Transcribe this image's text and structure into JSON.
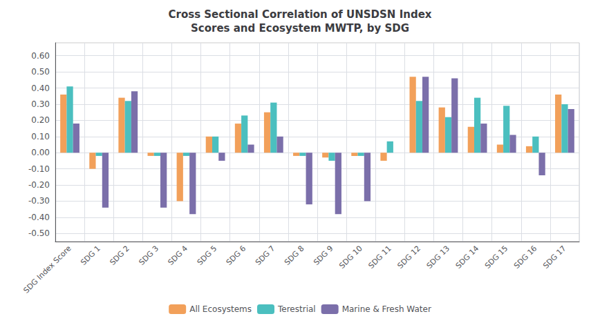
{
  "chart_data": {
    "type": "bar",
    "title": "Cross Sectional Correlation of UNSDSN Index\nScores and Ecosystem MWTP, by SDG",
    "categories": [
      "SDG Index Score",
      "SDG 1",
      "SDG 2",
      "SDG 3",
      "SDG 4",
      "SDG 5",
      "SDG 6",
      "SDG 7",
      "SDG 8",
      "SDG 9",
      "SDG 10",
      "SDG 11",
      "SDG 12",
      "SDG 13",
      "SDG 14",
      "SDG 15",
      "SDG 16",
      "SDG 17"
    ],
    "series": [
      {
        "name": "All Ecosystems",
        "color": "#F2A05A",
        "values": [
          0.36,
          -0.1,
          0.34,
          -0.02,
          -0.3,
          0.1,
          0.18,
          0.25,
          -0.02,
          -0.03,
          -0.02,
          -0.05,
          0.47,
          0.28,
          0.16,
          0.05,
          0.04,
          0.36
        ]
      },
      {
        "name": "Terestrial",
        "color": "#4BBFBF",
        "values": [
          0.41,
          -0.02,
          0.32,
          -0.02,
          -0.02,
          0.1,
          0.23,
          0.31,
          -0.02,
          -0.05,
          -0.02,
          0.07,
          0.32,
          0.22,
          0.34,
          0.29,
          0.1,
          0.3
        ]
      },
      {
        "name": "Marine & Fresh Water",
        "color": "#7B6FAA",
        "values": [
          0.18,
          -0.34,
          0.38,
          -0.34,
          -0.38,
          -0.05,
          0.05,
          0.1,
          -0.32,
          -0.38,
          -0.3,
          0.0,
          0.47,
          0.46,
          0.18,
          0.11,
          -0.14,
          0.27
        ]
      }
    ],
    "ylim": [
      -0.55,
      0.68
    ],
    "yticks": [
      {
        "value": -0.5,
        "label": "-0.50"
      },
      {
        "value": -0.4,
        "label": "-0.40"
      },
      {
        "value": -0.3,
        "label": "-0.30"
      },
      {
        "value": -0.2,
        "label": "-0.20"
      },
      {
        "value": -0.1,
        "label": "-0.10"
      },
      {
        "value": 0,
        "label": "0.00"
      },
      {
        "value": 0.1,
        "label": "0.10"
      },
      {
        "value": 0.2,
        "label": "0.20"
      },
      {
        "value": 0.3,
        "label": "0.30"
      },
      {
        "value": 0.4,
        "label": "0.40"
      },
      {
        "value": 0.5,
        "label": "0.50"
      },
      {
        "value": 0.6,
        "label": "0.60"
      }
    ],
    "grid": true,
    "legend": "bottom"
  }
}
